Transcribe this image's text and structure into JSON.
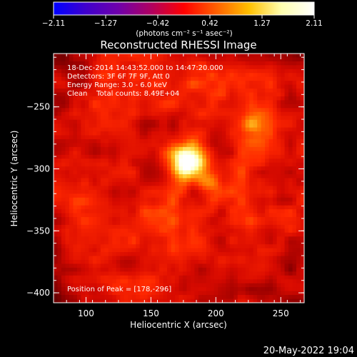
{
  "chart_data": {
    "type": "heatmap",
    "title": "Reconstructed RHESSI Image",
    "xlabel": "Heliocentric X (arcsec)",
    "ylabel": "Heliocentric Y (arcsec)",
    "xlim": [
      75,
      268
    ],
    "ylim": [
      -408,
      -207
    ],
    "xticks": [
      100,
      150,
      200,
      250
    ],
    "yticks": [
      -250,
      -300,
      -350,
      -400
    ],
    "colorbar": {
      "label": "(photons cm⁻² s⁻¹ asec⁻²)",
      "min": -2.11,
      "max": 2.11,
      "ticks": [
        "-2.11",
        "-1.27",
        "-0.42",
        "0.42",
        "1.27",
        "2.11"
      ],
      "colors": [
        "#0000ff",
        "#4000cc",
        "#7000aa",
        "#b00060",
        "#ff0000",
        "#ff6000",
        "#ffc000",
        "#ffffb0",
        "#ffffff"
      ]
    },
    "annotations": [
      "18-Dec-2014 14:43:52.000 to 14:47:20.000",
      "Detectors: 3F 6F 7F 9F, Att 0",
      "Energy Range: 3.0 - 6.0 keV",
      "Clean    Total counts: 8.49E+04"
    ],
    "peak_label": "Position of Peak = [178,-296]",
    "peak": [
      178,
      -296
    ],
    "sources": [
      {
        "x": 178,
        "y": -296,
        "amp": 1.0,
        "sigma": 9
      },
      {
        "x": 228,
        "y": -265,
        "amp": 0.5,
        "sigma": 8
      },
      {
        "x": 195,
        "y": -310,
        "amp": 0.45,
        "sigma": 7
      }
    ]
  },
  "timestamp": "20-May-2022 19:04"
}
